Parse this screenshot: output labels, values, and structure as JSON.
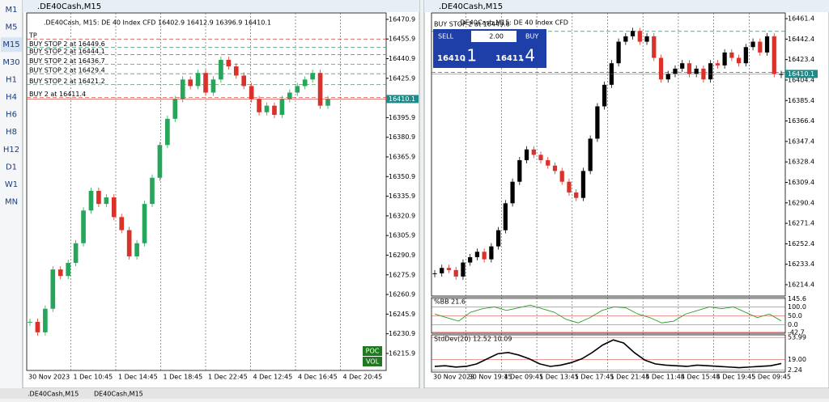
{
  "sidebar": {
    "timeframes": [
      "M1",
      "M5",
      "M15",
      "M30",
      "H1",
      "H4",
      "H6",
      "H8",
      "H12",
      "D1",
      "W1",
      "MN"
    ],
    "selected_index": 2
  },
  "windows": [
    {
      "title": ".DE40Cash,M15",
      "info": ".DE40Cash, M15:  DE 40 Index CFD  16402.9 16412.9 16396.9 16410.1",
      "ylim": [
        16202.9,
        16475.8
      ],
      "yticks": [
        16470.9,
        16455.9,
        16440.9,
        16425.9,
        16410.9,
        16395.9,
        16380.9,
        16365.9,
        16350.9,
        16335.9,
        16320.9,
        16305.9,
        16290.9,
        16275.9,
        16260.9,
        16245.9,
        16230.9,
        16215.9
      ],
      "x_labels": [
        "30 Nov 2023",
        "1 Dec 10:45",
        "1 Dec 14:45",
        "1 Dec 18:45",
        "1 Dec 22:45",
        "4 Dec 12:45",
        "4 Dec 16:45",
        "4 Dec 20:45"
      ],
      "up_color": "#26a65b",
      "down_color": "#d9322b",
      "closes": [
        16240,
        16232,
        16250,
        16280,
        16275,
        16285,
        16300,
        16325,
        16340,
        16330,
        16335,
        16320,
        16310,
        16290,
        16300,
        16330,
        16350,
        16375,
        16395,
        16410,
        16425,
        16420,
        16430,
        16415,
        16425,
        16440,
        16435,
        16428,
        16420,
        16410,
        16400,
        16405,
        16398,
        16410,
        16415,
        16420,
        16425,
        16430,
        16405,
        16410
      ],
      "orders": [
        {
          "label": "TP",
          "price": 16455.9
        },
        {
          "label": "BUY STOP 2 at 16449.6",
          "price": 16449.6
        },
        {
          "label": "BUY STOP 2 at 16444.1",
          "price": 16444.1
        },
        {
          "label": "BUY STOP 2 at 16436.7",
          "price": 16436.7
        },
        {
          "label": "BUY STOP 2 at 16429.4",
          "price": 16429.4
        },
        {
          "label": "BUY STOP 2 at 16421.2",
          "price": 16421.2
        },
        {
          "label": "BUY 2 at 16411.4",
          "price": 16411.4
        }
      ],
      "last_price": 16410.1,
      "buttons": [
        "POC",
        "VOL"
      ]
    },
    {
      "title": ".DE40Cash,M15",
      "info": ".DE40Cash,M15:  DE 40 Index CFD",
      "ylim": [
        16203.9,
        16466.7
      ],
      "yticks": [
        16461.4,
        16442.4,
        16423.4,
        16404.4,
        16385.4,
        16366.4,
        16347.4,
        16328.4,
        16309.4,
        16290.4,
        16271.4,
        16252.4,
        16233.4,
        16214.4
      ],
      "x_labels": [
        "30 Nov 2023",
        "30 Nov 19:45",
        "1 Dec 09:45",
        "1 Dec 13:45",
        "1 Dec 17:45",
        "1 Dec 21:45",
        "4 Dec 11:45",
        "4 Dec 15:45",
        "4 Dec 19:45",
        "5 Dec 09:45"
      ],
      "up_color": "#000000",
      "down_color": "#d9322b",
      "closes": [
        16225,
        16230,
        16228,
        16222,
        16235,
        16240,
        16245,
        16238,
        16250,
        16265,
        16290,
        16310,
        16330,
        16340,
        16335,
        16330,
        16325,
        16320,
        16310,
        16300,
        16295,
        16320,
        16350,
        16380,
        16400,
        16420,
        16440,
        16445,
        16450,
        16440,
        16445,
        16425,
        16405,
        16410,
        16415,
        16420,
        16410,
        16415,
        16405,
        16420,
        16418,
        16430,
        16425,
        16420,
        16435,
        16440,
        16430,
        16445,
        16410,
        16410
      ],
      "orders": [
        {
          "label": "BUY STOP 2 at 16449.6",
          "price": 16449.6
        },
        {
          "label": "BUY 2 at 16411.4",
          "price": 16411.4
        }
      ],
      "last_price": 16410.1,
      "trade": {
        "sell": "SELL",
        "volume": "2.00",
        "buy": "BUY",
        "bid_big": "16410",
        "bid_small": ".1",
        "ask_big": "16411",
        "ask_small": ".4"
      },
      "panels": [
        {
          "name": "%BB 21.6",
          "color": "#2a9d2a",
          "ylim": [
            -48,
            152
          ],
          "yticks": [
            145.6,
            {
              "value": 100,
              "label": "100.0"
            },
            {
              "value": 50,
              "label": "50.0"
            },
            {
              "value": 0,
              "label": "0.0"
            },
            -42.7
          ],
          "values": [
            60,
            40,
            20,
            70,
            90,
            100,
            80,
            95,
            110,
            90,
            70,
            30,
            10,
            40,
            80,
            100,
            95,
            60,
            40,
            10,
            20,
            60,
            80,
            100,
            90,
            100,
            70,
            40,
            60,
            21.6
          ]
        },
        {
          "name": "StdDev(20) 12.52 10.09",
          "color": "#000000",
          "ylim": [
            -1,
            58
          ],
          "yticks": [
            53.99,
            {
              "value": 19,
              "label": "19.00"
            },
            2.24
          ],
          "values": [
            8,
            9,
            7,
            8,
            12,
            20,
            28,
            30,
            26,
            20,
            12,
            8,
            10,
            14,
            20,
            30,
            42,
            50,
            45,
            30,
            18,
            12,
            10,
            9,
            8,
            10,
            9,
            8,
            7,
            6,
            7,
            8,
            9,
            12.52
          ]
        }
      ]
    }
  ],
  "tabs": [
    ".DE40Cash,M15",
    "DE40Cash,M15"
  ]
}
